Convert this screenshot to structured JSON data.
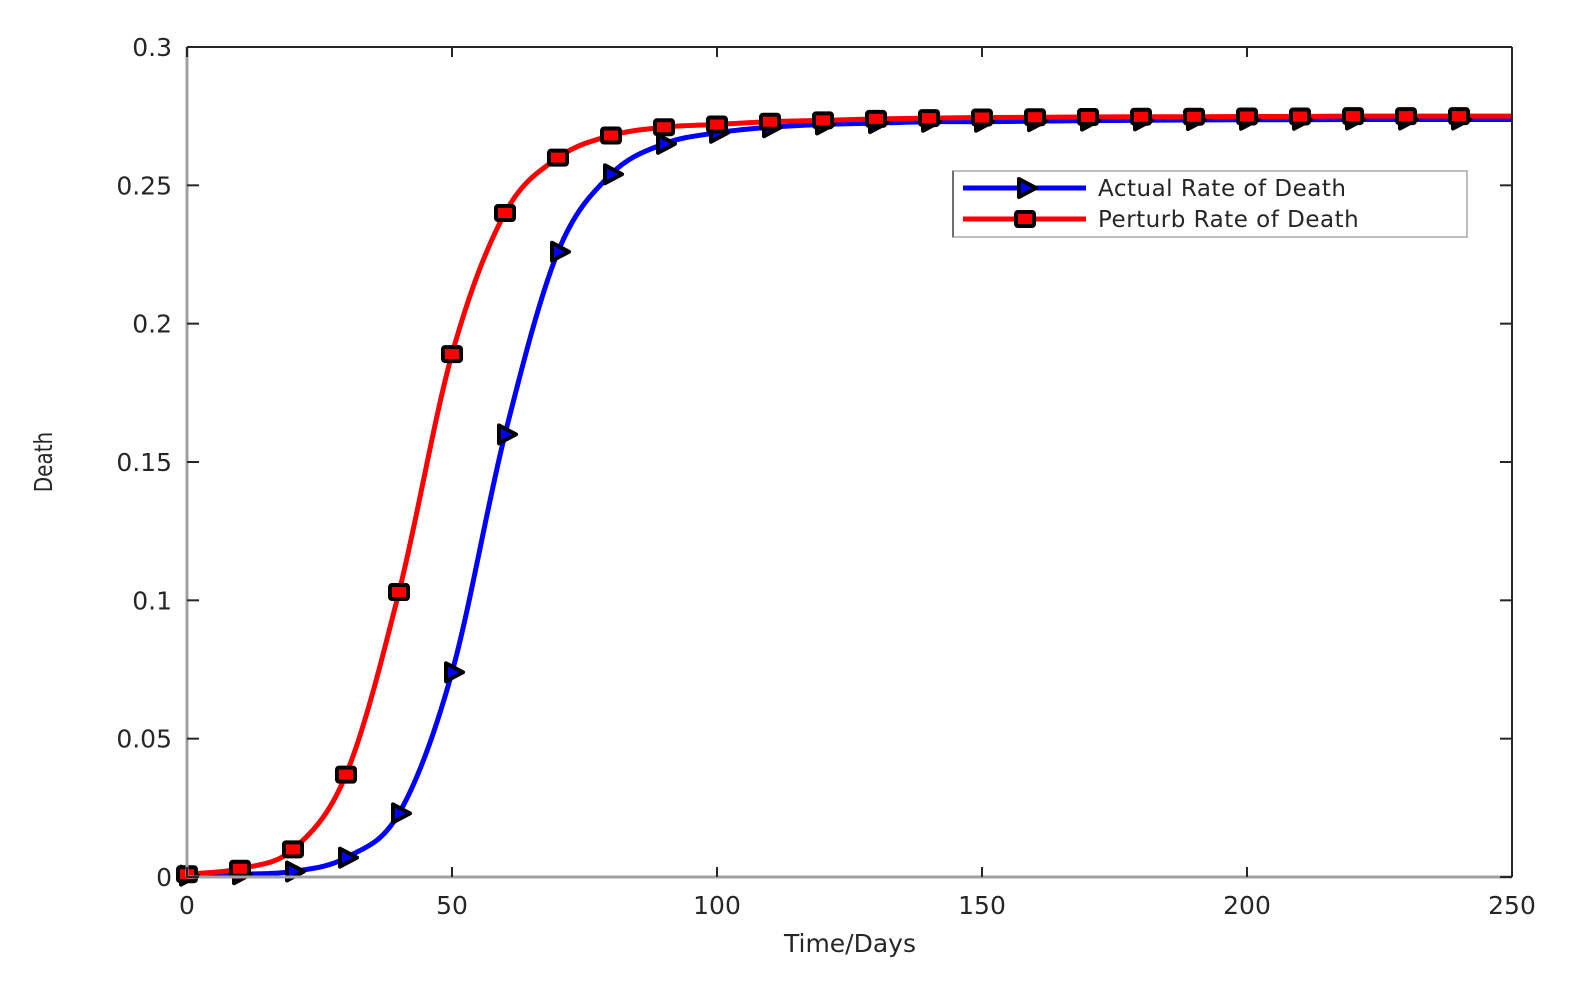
{
  "chart_data": {
    "type": "line",
    "title": "",
    "xlabel": "Time/Days",
    "ylabel": "Death",
    "xlim": [
      0,
      250
    ],
    "ylim": [
      0,
      0.3
    ],
    "grid": false,
    "legend_position": "upper right (inside)",
    "xticks": [
      0,
      50,
      100,
      150,
      200,
      250
    ],
    "xtick_labels": [
      "0",
      "50",
      "100",
      "150",
      "200",
      "250"
    ],
    "yticks": [
      0,
      0.05,
      0.1,
      0.15,
      0.2,
      0.25,
      0.3
    ],
    "ytick_labels": [
      "0",
      "0.05",
      "0.1",
      "0.15",
      "0.2",
      "0.25",
      "0.3"
    ],
    "x": [
      0,
      10,
      20,
      30,
      40,
      50,
      60,
      70,
      80,
      90,
      100,
      110,
      120,
      130,
      140,
      150,
      160,
      170,
      180,
      190,
      200,
      210,
      220,
      230,
      240
    ],
    "series": [
      {
        "name": "Actual Rate of Death",
        "color": "#0000ff",
        "marker": "triangle-right",
        "values": [
          0.0005,
          0.001,
          0.002,
          0.007,
          0.023,
          0.074,
          0.16,
          0.226,
          0.254,
          0.265,
          0.269,
          0.271,
          0.272,
          0.2725,
          0.273,
          0.273,
          0.2732,
          0.2734,
          0.2735,
          0.2736,
          0.2737,
          0.2737,
          0.2738,
          0.2738,
          0.2738
        ]
      },
      {
        "name": "Perturb Rate of Death",
        "color": "#ff0000",
        "marker": "square",
        "values": [
          0.001,
          0.003,
          0.01,
          0.037,
          0.103,
          0.189,
          0.24,
          0.26,
          0.268,
          0.271,
          0.272,
          0.273,
          0.2735,
          0.274,
          0.2743,
          0.2745,
          0.2746,
          0.2747,
          0.2748,
          0.2748,
          0.2749,
          0.2749,
          0.275,
          0.275,
          0.275
        ]
      }
    ]
  },
  "colors": {
    "axis": "#262626",
    "axis_light": "#a0a0a0",
    "marker_edge": "#000000",
    "background": "#ffffff"
  }
}
